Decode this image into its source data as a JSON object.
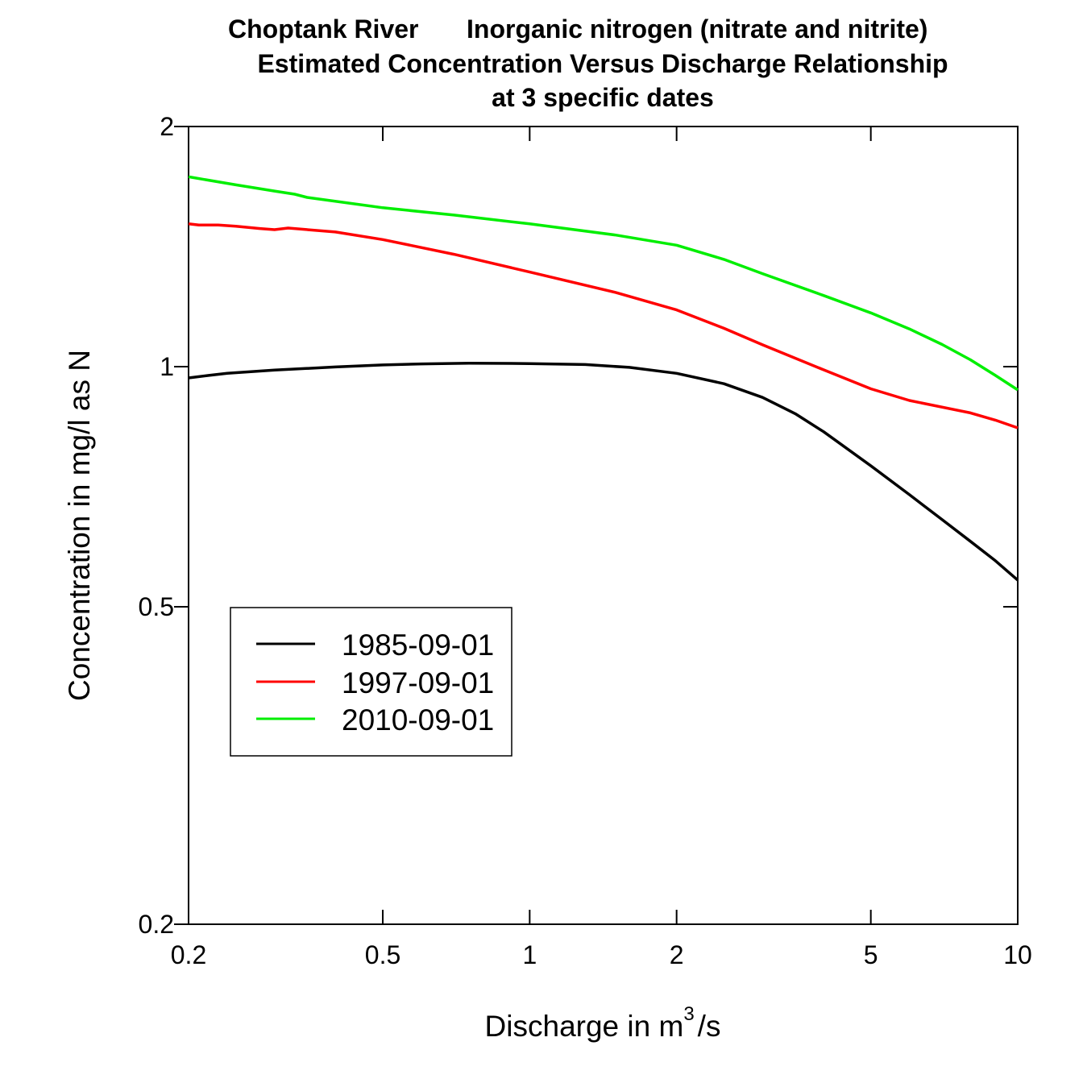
{
  "chart_data": {
    "type": "line",
    "title": {
      "line1_left": "Choptank River",
      "line1_right": "Inorganic nitrogen (nitrate and nitrite)",
      "line2": "Estimated Concentration Versus Discharge Relationship",
      "line3": "at 3 specific dates"
    },
    "xlabel": "Discharge in m",
    "xlabel_sup": "3",
    "xlabel_tail": "/s",
    "ylabel": "Concentration in mg/l as N",
    "x_scale": "log",
    "y_scale": "log",
    "xlim": [
      0.2,
      10
    ],
    "ylim": [
      0.2,
      2
    ],
    "x_ticks": [
      0.2,
      0.5,
      1,
      2,
      5,
      10
    ],
    "x_tick_labels": [
      "0.2",
      "0.5",
      "1",
      "2",
      "5",
      "10"
    ],
    "y_ticks": [
      0.2,
      0.5,
      1,
      2
    ],
    "y_tick_labels": [
      "0.2",
      "0.5",
      "1",
      "2"
    ],
    "legend_position": "bottom-left",
    "grid": false,
    "series": [
      {
        "name": "1985-09-01",
        "color": "#000000",
        "points": [
          [
            0.2,
            0.968
          ],
          [
            0.22,
            0.975
          ],
          [
            0.24,
            0.981
          ],
          [
            0.3,
            0.99
          ],
          [
            0.4,
            0.999
          ],
          [
            0.5,
            1.005
          ],
          [
            0.6,
            1.008
          ],
          [
            0.75,
            1.01
          ],
          [
            1.0,
            1.009
          ],
          [
            1.3,
            1.006
          ],
          [
            1.6,
            0.998
          ],
          [
            2.0,
            0.981
          ],
          [
            2.5,
            0.952
          ],
          [
            3.0,
            0.915
          ],
          [
            3.5,
            0.873
          ],
          [
            4.0,
            0.829
          ],
          [
            5.0,
            0.751
          ],
          [
            6.0,
            0.691
          ],
          [
            7.0,
            0.643
          ],
          [
            8.0,
            0.604
          ],
          [
            9.0,
            0.571
          ],
          [
            10.0,
            0.54
          ]
        ]
      },
      {
        "name": "1997-09-01",
        "color": "#ff0000",
        "points": [
          [
            0.2,
            1.51
          ],
          [
            0.21,
            1.505
          ],
          [
            0.23,
            1.505
          ],
          [
            0.25,
            1.5
          ],
          [
            0.28,
            1.49
          ],
          [
            0.3,
            1.485
          ],
          [
            0.32,
            1.492
          ],
          [
            0.4,
            1.475
          ],
          [
            0.5,
            1.443
          ],
          [
            0.7,
            1.383
          ],
          [
            1.0,
            1.314
          ],
          [
            1.5,
            1.239
          ],
          [
            2.0,
            1.178
          ],
          [
            2.5,
            1.117
          ],
          [
            3.0,
            1.065
          ],
          [
            4.0,
            0.991
          ],
          [
            5.0,
            0.938
          ],
          [
            6.0,
            0.907
          ],
          [
            8.0,
            0.875
          ],
          [
            9.0,
            0.857
          ],
          [
            10.0,
            0.838
          ]
        ]
      },
      {
        "name": "2010-09-01",
        "color": "#00ee00",
        "points": [
          [
            0.2,
            1.73
          ],
          [
            0.25,
            1.69
          ],
          [
            0.3,
            1.66
          ],
          [
            0.33,
            1.645
          ],
          [
            0.35,
            1.63
          ],
          [
            0.5,
            1.582
          ],
          [
            0.7,
            1.549
          ],
          [
            1.0,
            1.51
          ],
          [
            1.5,
            1.462
          ],
          [
            2.0,
            1.42
          ],
          [
            2.5,
            1.363
          ],
          [
            3.0,
            1.308
          ],
          [
            4.0,
            1.228
          ],
          [
            5.0,
            1.168
          ],
          [
            6.0,
            1.115
          ],
          [
            7.0,
            1.066
          ],
          [
            8.0,
            1.02
          ],
          [
            9.0,
            0.975
          ],
          [
            10.0,
            0.935
          ]
        ]
      }
    ]
  }
}
